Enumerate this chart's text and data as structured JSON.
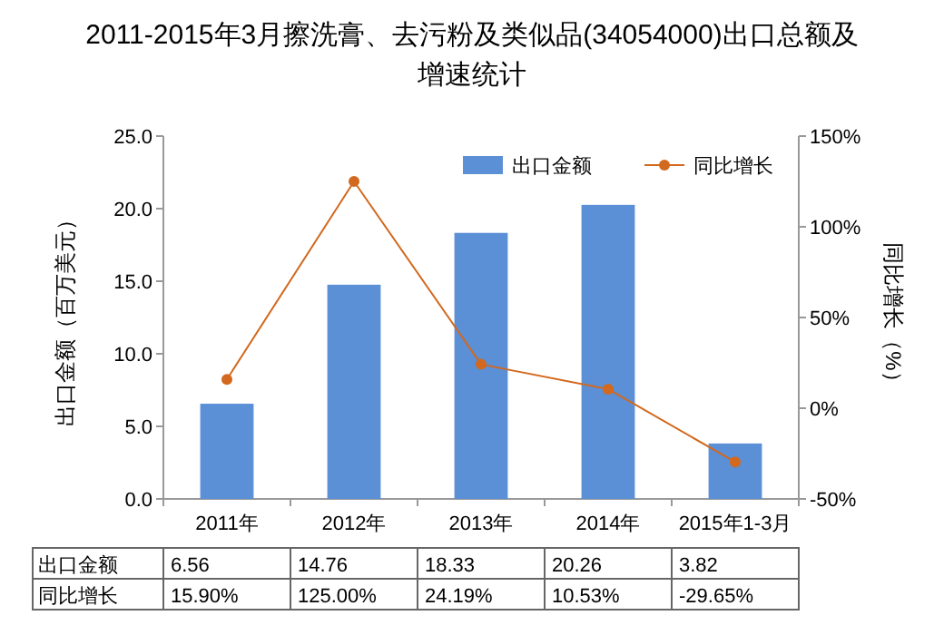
{
  "chart_data": {
    "type": "bar",
    "title": "2011-2015年3月擦洗膏、去污粉及类似品(34054000)出口总额及增速统计",
    "categories": [
      "2011年",
      "2012年",
      "2013年",
      "2014年",
      "2015年1-3月"
    ],
    "ylabel": "出口金额（百万美元）",
    "y2label": "同比增长（%）",
    "ylim": [
      0,
      25
    ],
    "yticks": [
      {
        "value": 0,
        "label": "0.0"
      },
      {
        "value": 5,
        "label": "5.0"
      },
      {
        "value": 10,
        "label": "10.0"
      },
      {
        "value": 15,
        "label": "15.0"
      },
      {
        "value": 20,
        "label": "20.0"
      },
      {
        "value": 25,
        "label": "25.0"
      }
    ],
    "y2lim": [
      -50,
      150
    ],
    "y2ticks": [
      {
        "value": -50,
        "label": "-50%"
      },
      {
        "value": 0,
        "label": "0%"
      },
      {
        "value": 50,
        "label": "50%"
      },
      {
        "value": 100,
        "label": "100%"
      },
      {
        "value": 150,
        "label": "150%"
      }
    ],
    "legend": "top",
    "grid": false,
    "marker": "circle",
    "series": [
      {
        "name": "出口金额",
        "color": "#5b8fd6",
        "values": [
          6.56,
          14.76,
          18.33,
          20.26,
          3.82
        ],
        "value_labels": [
          "6.56",
          "14.76",
          "18.33",
          "20.26",
          "3.82"
        ]
      },
      {
        "name": "同比增长",
        "type": "line",
        "axis": "y2",
        "color": "#d2691e",
        "values": [
          15.9,
          125.0,
          24.19,
          10.53,
          -29.65
        ],
        "value_labels": [
          "15.90%",
          "125.00%",
          "24.19%",
          "10.53%",
          "-29.65%"
        ]
      }
    ]
  }
}
